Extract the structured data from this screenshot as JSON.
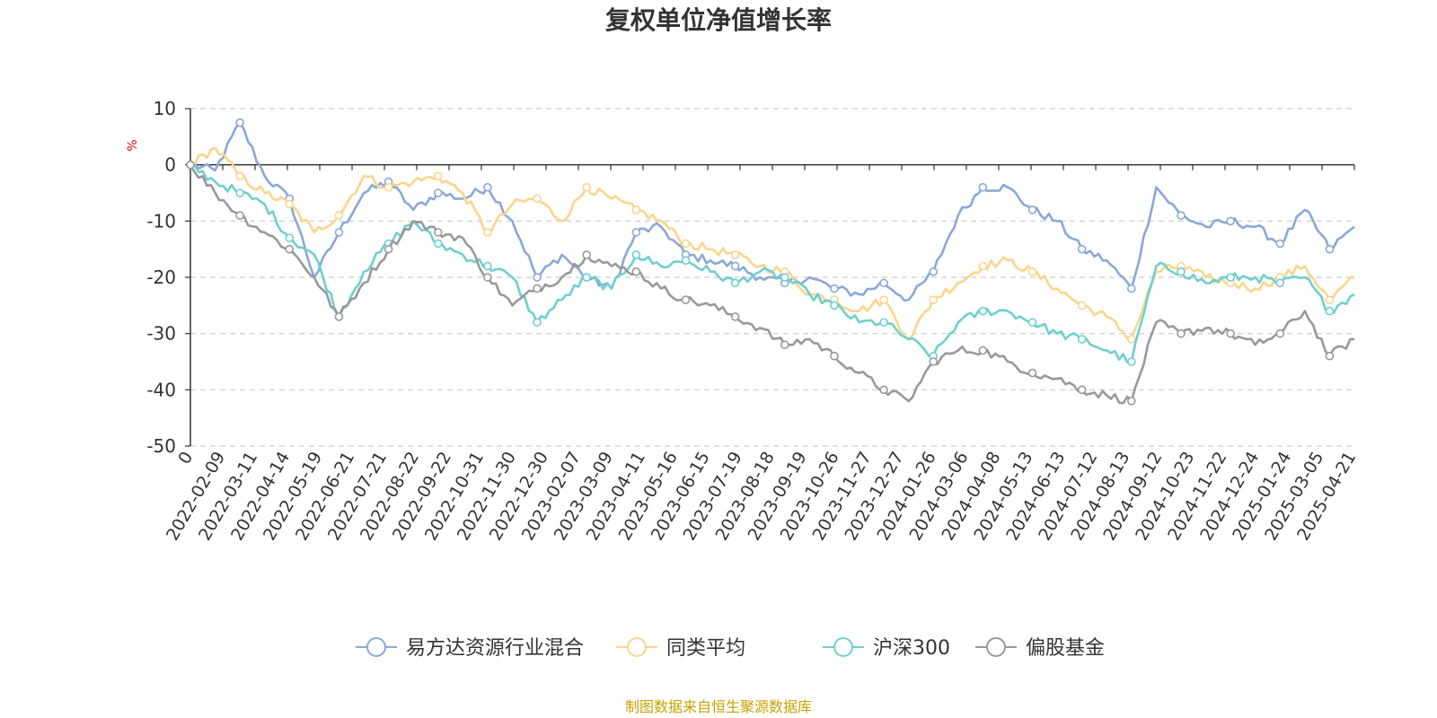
{
  "source_note": "制图数据来自恒生聚源数据库",
  "chart_data": {
    "type": "line",
    "title": "复权单位净值增长率",
    "ylabel": "%",
    "ylim": [
      -50,
      10
    ],
    "yticks": [
      10,
      0,
      -10,
      -20,
      -30,
      -40,
      -50
    ],
    "grid": true,
    "legend_position": "bottom",
    "x_tick_labels": [
      "0",
      "2022-02-09",
      "2022-03-11",
      "2022-04-14",
      "2022-05-19",
      "2022-06-21",
      "2022-07-21",
      "2022-08-22",
      "2022-09-22",
      "2022-10-31",
      "2022-11-30",
      "2022-12-30",
      "2023-02-07",
      "2023-03-09",
      "2023-04-11",
      "2023-05-16",
      "2023-06-15",
      "2023-07-19",
      "2023-08-18",
      "2023-09-19",
      "2023-10-26",
      "2023-11-27",
      "2023-12-27",
      "2024-01-26",
      "2024-03-06",
      "2024-04-08",
      "2024-05-13",
      "2024-06-13",
      "2024-07-12",
      "2024-08-13",
      "2024-09-12",
      "2024-10-23",
      "2024-11-22",
      "2024-12-24",
      "2025-01-24",
      "2025-03-05",
      "2025-04-21"
    ],
    "series": [
      {
        "name": "易方达资源行业混合",
        "color": "#8aa8d8",
        "values": [
          0,
          -1,
          7.5,
          -2,
          -6,
          -20,
          -12,
          -5,
          -3,
          -8,
          -5,
          -6,
          -4,
          -10,
          -20,
          -16,
          -20,
          -22,
          -12,
          -11,
          -16,
          -17,
          -18,
          -20,
          -21,
          -20,
          -22,
          -23,
          -21,
          -24,
          -19,
          -9,
          -4,
          -4,
          -8,
          -10,
          -15,
          -17,
          -22,
          -4,
          -9,
          -11,
          -10,
          -11,
          -14,
          -8,
          -15,
          -11
        ]
      },
      {
        "name": "同类平均",
        "color": "#fad58c",
        "values": [
          0,
          3,
          -2,
          -5,
          -7,
          -12,
          -9,
          -2,
          -4,
          -3,
          -2,
          -5,
          -12,
          -7,
          -6,
          -10,
          -4,
          -6,
          -8,
          -10,
          -14,
          -15,
          -16,
          -18,
          -19,
          -23,
          -24,
          -26,
          -24,
          -31,
          -24,
          -21,
          -18,
          -17,
          -19,
          -22,
          -25,
          -27,
          -31,
          -19,
          -18,
          -20,
          -21,
          -22,
          -20,
          -18,
          -24,
          -20
        ]
      },
      {
        "name": "沪深300",
        "color": "#6fcfd0",
        "values": [
          0,
          -3,
          -5,
          -7,
          -13,
          -16,
          -27,
          -19,
          -14,
          -10,
          -14,
          -16,
          -18,
          -20,
          -28,
          -24,
          -20,
          -22,
          -16,
          -18,
          -17,
          -19,
          -21,
          -19,
          -20,
          -23,
          -25,
          -28,
          -28,
          -31,
          -34,
          -28,
          -26,
          -26,
          -28,
          -30,
          -31,
          -33,
          -35,
          -18,
          -19,
          -21,
          -20,
          -20,
          -21,
          -20,
          -26,
          -23
        ]
      },
      {
        "name": "偏股基金",
        "color": "#999999",
        "values": [
          0,
          -5,
          -9,
          -12,
          -15,
          -20,
          -27,
          -21,
          -15,
          -10,
          -12,
          -13,
          -20,
          -25,
          -22,
          -20,
          -16,
          -18,
          -19,
          -22,
          -24,
          -25,
          -27,
          -29,
          -32,
          -31,
          -34,
          -37,
          -40,
          -42,
          -35,
          -33,
          -33,
          -35,
          -37,
          -38,
          -40,
          -41,
          -42,
          -28,
          -30,
          -29,
          -30,
          -32,
          -30,
          -26,
          -34,
          -31
        ]
      }
    ]
  }
}
